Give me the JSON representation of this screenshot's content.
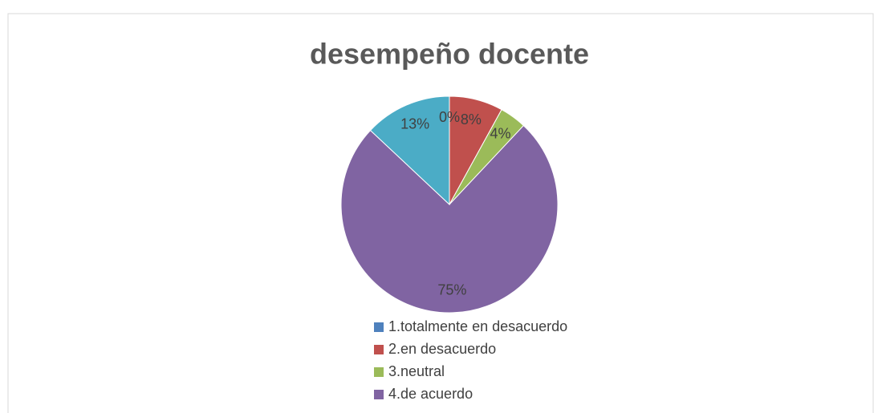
{
  "chart_data": {
    "type": "pie",
    "title": "desempeño docente",
    "categories": [
      "1.totalmente en desacuerdo",
      "2.en desacuerdo",
      "3.neutral",
      "4.de acuerdo",
      null
    ],
    "values": [
      0,
      8,
      4,
      75,
      13
    ],
    "value_labels": [
      "0%",
      "8%",
      "4%",
      "75%",
      "13%"
    ],
    "colors": [
      "#4f81bd",
      "#c0504d",
      "#9bbb59",
      "#8064a2",
      "#4bacc6"
    ]
  }
}
